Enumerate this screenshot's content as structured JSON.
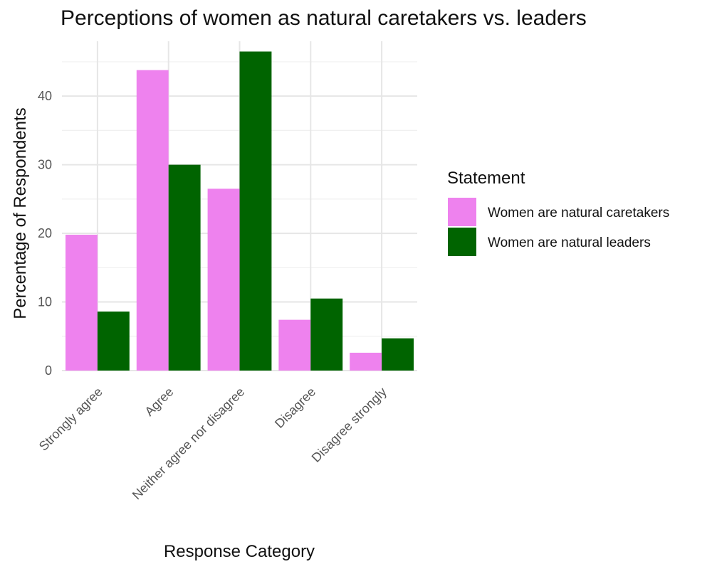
{
  "chart_data": {
    "type": "bar",
    "title": "Perceptions of women as natural caretakers vs. leaders",
    "xlabel": "Response Category",
    "ylabel": "Percentage of Respondents",
    "categories": [
      "Strongly agree",
      "Agree",
      "Neither agree nor disagree",
      "Disagree",
      "Disagree strongly"
    ],
    "series": [
      {
        "name": "Women are natural caretakers",
        "color": "#ee82ee",
        "values": [
          19.8,
          43.8,
          26.5,
          7.4,
          2.6
        ]
      },
      {
        "name": "Women are natural leaders",
        "color": "#006400",
        "values": [
          8.6,
          30.0,
          46.5,
          10.5,
          4.7
        ]
      }
    ],
    "ylim": [
      0,
      48
    ],
    "yticks": [
      0,
      10,
      20,
      30,
      40
    ],
    "grid": true,
    "legend": {
      "title": "Statement",
      "position": "right"
    }
  }
}
